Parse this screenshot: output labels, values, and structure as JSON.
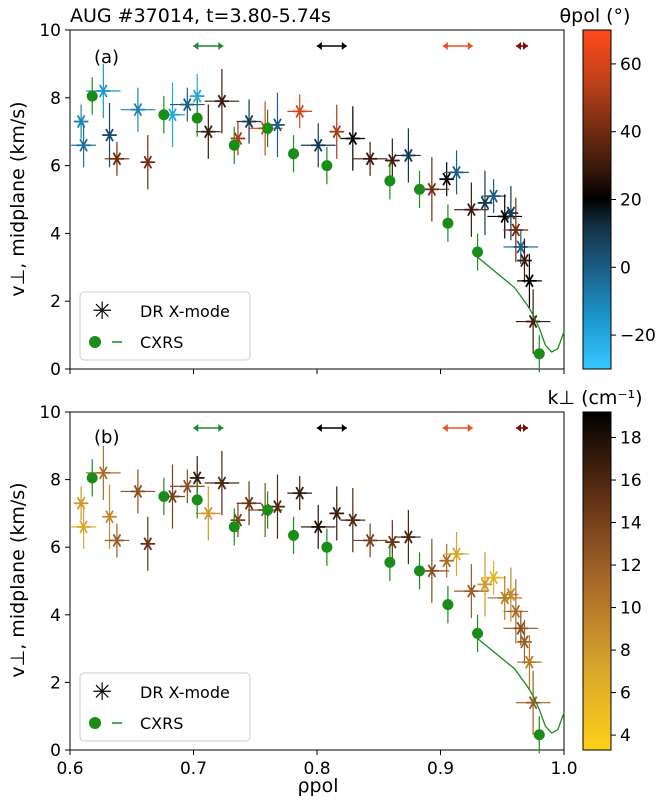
{
  "chart_data": [
    {
      "id": "a",
      "type": "scatter",
      "title": "AUG #37014, t=3.80-5.74s",
      "panel_label": "(a)",
      "xlabel": "ρpol",
      "ylabel": "v⊥, midplane (km/s)",
      "xlim": [
        0.6,
        1.0
      ],
      "ylim": [
        0,
        10
      ],
      "xticks": [
        "0.6",
        "0.7",
        "0.8",
        "0.9",
        "1.0"
      ],
      "yticks": [
        "0",
        "2",
        "4",
        "6",
        "8",
        "10"
      ],
      "colorbar": {
        "label": "θpol (°)",
        "range": [
          -30,
          70
        ],
        "ticks": [
          "−20",
          "0",
          "20",
          "40",
          "60"
        ],
        "tick_values": [
          -20,
          0,
          20,
          40,
          60
        ],
        "colormap": "diverging blue-black-orange"
      },
      "legend": [
        "DR X-mode",
        "CXRS"
      ],
      "legend_loc": "lower left",
      "arrows": [
        {
          "x": 0.712,
          "color": "#1f8a2b"
        },
        {
          "x": 0.812,
          "color": "#000000"
        },
        {
          "x": 0.914,
          "color": "#e8501e"
        },
        {
          "x": 0.966,
          "color": "#7b0e0e"
        }
      ],
      "series": [
        {
          "name": "CXRS",
          "marker": "circle",
          "color": "#1a8c1a",
          "x": [
            0.618,
            0.676,
            0.703,
            0.733,
            0.76,
            0.781,
            0.808,
            0.859,
            0.883,
            0.906,
            0.93,
            0.98
          ],
          "y": [
            8.05,
            7.5,
            7.4,
            6.6,
            7.1,
            6.35,
            6.0,
            5.55,
            5.3,
            4.3,
            3.45,
            0.45
          ]
        },
        {
          "name": "CXRS fit",
          "type": "line",
          "color": "#1a8c1a",
          "x": [
            0.93,
            0.95,
            0.96,
            0.97,
            0.975,
            0.98,
            0.985,
            0.99,
            0.995,
            1.0
          ],
          "y": [
            3.3,
            2.7,
            2.4,
            1.9,
            1.6,
            1.2,
            0.7,
            0.5,
            0.6,
            1.1
          ]
        },
        {
          "name": "DR X-mode",
          "marker": "asterisk",
          "x": [
            0.609,
            0.611,
            0.627,
            0.632,
            0.638,
            0.655,
            0.663,
            0.683,
            0.695,
            0.703,
            0.712,
            0.723,
            0.736,
            0.745,
            0.758,
            0.768,
            0.786,
            0.801,
            0.816,
            0.829,
            0.843,
            0.861,
            0.874,
            0.893,
            0.905,
            0.913,
            0.925,
            0.936,
            0.943,
            0.952,
            0.957,
            0.961,
            0.965,
            0.968,
            0.972,
            0.975
          ],
          "y": [
            7.3,
            6.6,
            8.2,
            6.9,
            6.2,
            7.65,
            6.1,
            7.5,
            7.8,
            8.05,
            7.0,
            7.9,
            6.8,
            7.3,
            7.1,
            7.2,
            7.6,
            6.6,
            7.0,
            6.8,
            6.2,
            6.15,
            6.3,
            5.3,
            5.6,
            5.8,
            4.7,
            4.9,
            5.1,
            4.5,
            4.6,
            4.1,
            3.6,
            3.2,
            2.6,
            1.4
          ],
          "theta": [
            -10,
            -5,
            -15,
            5,
            40,
            -10,
            40,
            -20,
            0,
            -20,
            30,
            30,
            50,
            10,
            60,
            0,
            60,
            10,
            50,
            20,
            30,
            30,
            10,
            40,
            20,
            0,
            30,
            10,
            0,
            20,
            10,
            40,
            0,
            30,
            20,
            30
          ]
        }
      ]
    },
    {
      "id": "b",
      "type": "scatter",
      "panel_label": "(b)",
      "xlabel": "ρpol",
      "ylabel": "v⊥, midplane (km/s)",
      "xlim": [
        0.6,
        1.0
      ],
      "ylim": [
        0,
        10
      ],
      "xticks": [
        "0.6",
        "0.7",
        "0.8",
        "0.9",
        "1.0"
      ],
      "yticks": [
        "0",
        "2",
        "4",
        "6",
        "8",
        "10"
      ],
      "colorbar": {
        "label": "k⊥ (cm⁻¹)",
        "range": [
          3.3,
          19.2
        ],
        "ticks": [
          "4",
          "6",
          "8",
          "10",
          "12",
          "14",
          "16",
          "18"
        ],
        "tick_values": [
          4,
          6,
          8,
          10,
          12,
          14,
          16,
          18
        ],
        "colormap": "yellow-brown-black"
      },
      "legend": [
        "DR X-mode",
        "CXRS"
      ],
      "legend_loc": "lower left",
      "arrows": [
        {
          "x": 0.712,
          "color": "#1f8a2b"
        },
        {
          "x": 0.812,
          "color": "#000000"
        },
        {
          "x": 0.914,
          "color": "#e8501e"
        },
        {
          "x": 0.966,
          "color": "#7b0e0e"
        }
      ],
      "series": [
        {
          "name": "CXRS",
          "marker": "circle",
          "color": "#1a8c1a",
          "x": [
            0.618,
            0.676,
            0.703,
            0.733,
            0.76,
            0.781,
            0.808,
            0.859,
            0.883,
            0.906,
            0.93,
            0.98
          ],
          "y": [
            8.05,
            7.5,
            7.4,
            6.6,
            7.1,
            6.35,
            6.0,
            5.55,
            5.3,
            4.3,
            3.45,
            0.45
          ]
        },
        {
          "name": "CXRS fit",
          "type": "line",
          "color": "#1a8c1a",
          "x": [
            0.93,
            0.95,
            0.96,
            0.97,
            0.975,
            0.98,
            0.985,
            0.99,
            0.995,
            1.0
          ],
          "y": [
            3.3,
            2.7,
            2.4,
            1.9,
            1.6,
            1.2,
            0.7,
            0.5,
            0.6,
            1.1
          ]
        },
        {
          "name": "DR X-mode",
          "marker": "asterisk",
          "x": [
            0.609,
            0.611,
            0.627,
            0.632,
            0.638,
            0.655,
            0.663,
            0.683,
            0.695,
            0.703,
            0.712,
            0.723,
            0.736,
            0.745,
            0.758,
            0.768,
            0.786,
            0.801,
            0.816,
            0.829,
            0.843,
            0.861,
            0.874,
            0.893,
            0.905,
            0.913,
            0.925,
            0.936,
            0.943,
            0.952,
            0.957,
            0.961,
            0.965,
            0.968,
            0.972,
            0.975
          ],
          "y": [
            7.3,
            6.6,
            8.2,
            6.9,
            6.2,
            7.65,
            6.1,
            7.5,
            7.8,
            8.05,
            7.0,
            7.9,
            6.8,
            7.3,
            7.1,
            7.2,
            7.6,
            6.6,
            7.0,
            6.8,
            6.2,
            6.15,
            6.3,
            5.3,
            5.6,
            5.8,
            4.7,
            4.9,
            5.1,
            4.5,
            4.6,
            4.1,
            3.6,
            3.2,
            2.6,
            1.4
          ],
          "kperp": [
            8,
            7,
            11,
            9,
            12,
            13,
            15,
            14,
            13,
            17,
            8,
            16,
            14,
            15,
            13,
            16,
            17,
            18,
            17,
            16,
            14,
            15,
            16,
            13,
            11,
            7,
            12,
            8,
            6,
            10,
            9,
            11,
            13,
            12,
            10,
            12
          ]
        }
      ]
    }
  ]
}
